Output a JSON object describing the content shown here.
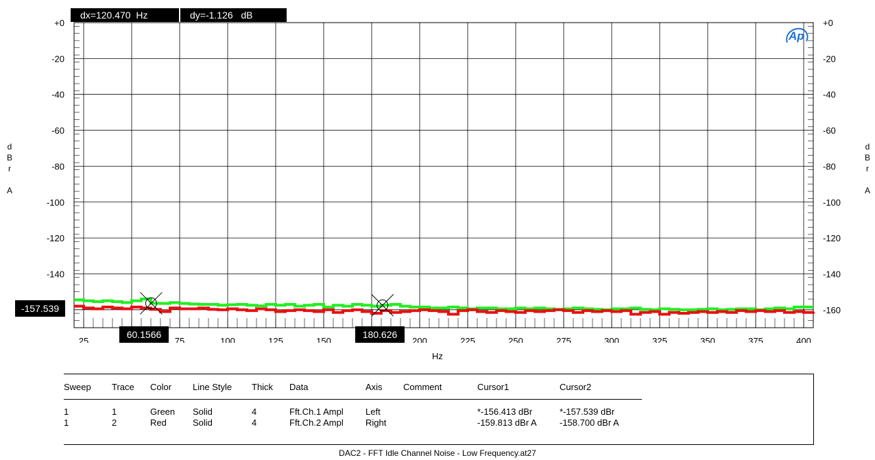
{
  "cursor_readout": {
    "dx": "dx=120.470  Hz",
    "dy": "dy=-1.126   dB"
  },
  "logo_text": "Ap",
  "ylabel_left": [
    "d",
    "B",
    "r",
    "",
    "A"
  ],
  "ylabel_right": [
    "d",
    "B",
    "r",
    "",
    "A"
  ],
  "xlabel": "Hz",
  "markers": {
    "x_cursor1": "60.1566",
    "x_cursor2": "180.626",
    "y_cursor": "-157.539"
  },
  "legend": {
    "headers": [
      "Sweep",
      "Trace",
      "Color",
      "Line Style",
      "Thick",
      "Data",
      "Axis",
      "Comment",
      "Cursor1",
      "Cursor2"
    ],
    "rows": [
      [
        "1",
        "1",
        "Green",
        "Solid",
        "4",
        "Fft.Ch.1 Ampl",
        "Left",
        "",
        "*-156.413 dBr",
        "*-157.539 dBr"
      ],
      [
        "1",
        "2",
        "Red",
        "Solid",
        "4",
        "Fft.Ch.2 Ampl",
        "Right",
        "",
        "-159.813 dBr A",
        "-158.700 dBr A"
      ]
    ]
  },
  "footer": "DAC2 - FFT Idle Channel Noise - Low Frequency.at27",
  "colors": {
    "trace1": "#22ee22",
    "trace2": "#e81010",
    "grid": "#000000"
  },
  "chart_data": {
    "type": "line",
    "xlabel": "Hz",
    "ylabel": "dBr A",
    "xlim": [
      20,
      405
    ],
    "ylim": [
      -170,
      0
    ],
    "x_ticks": [
      "25",
      "50",
      "75",
      "100",
      "125",
      "150",
      "175",
      "200",
      "225",
      "250",
      "275",
      "300",
      "325",
      "350",
      "375",
      "400"
    ],
    "y_ticks_left": [
      "+0",
      "-20",
      "-40",
      "-60",
      "-80",
      "-100",
      "-120",
      "-140",
      "-160"
    ],
    "y_ticks_right": [
      "+0",
      "-20",
      "-40",
      "-60",
      "-80",
      "-100",
      "-120",
      "-140",
      "-160"
    ],
    "grid": true,
    "cursors": {
      "x1": 60.1566,
      "x2": 180.626,
      "y1_trace1": -156.413,
      "y2_trace1": -157.539
    },
    "series": [
      {
        "x": [
          20,
          25,
          30,
          35,
          40,
          45,
          50,
          55,
          60,
          65,
          70,
          75,
          80,
          85,
          90,
          95,
          100,
          105,
          110,
          115,
          120,
          125,
          130,
          135,
          140,
          145,
          150,
          155,
          160,
          165,
          170,
          175,
          180,
          185,
          190,
          195,
          200,
          205,
          210,
          215,
          220,
          225,
          230,
          235,
          240,
          245,
          250,
          255,
          260,
          265,
          270,
          275,
          280,
          285,
          290,
          295,
          300,
          305,
          310,
          315,
          320,
          325,
          330,
          335,
          340,
          345,
          350,
          355,
          360,
          365,
          370,
          375,
          380,
          385,
          390,
          395,
          400,
          405
        ],
        "values": [
          -154.5,
          -155.0,
          -155.5,
          -155.0,
          -155.5,
          -156.0,
          -155.0,
          -154.0,
          -156.4,
          -156.5,
          -156.0,
          -156.5,
          -156.8,
          -157.0,
          -157.0,
          -157.5,
          -157.2,
          -157.0,
          -157.5,
          -157.8,
          -157.0,
          -157.5,
          -157.0,
          -158.0,
          -157.5,
          -157.0,
          -158.5,
          -157.5,
          -158.0,
          -157.0,
          -157.5,
          -158.0,
          -157.5,
          -157.0,
          -158.0,
          -158.5,
          -158.5,
          -159.0,
          -159.0,
          -158.5,
          -159.0,
          -159.5,
          -159.0,
          -159.0,
          -159.5,
          -159.5,
          -159.0,
          -159.5,
          -159.0,
          -159.5,
          -159.8,
          -159.5,
          -159.0,
          -159.5,
          -159.8,
          -160.0,
          -159.5,
          -159.5,
          -159.0,
          -159.8,
          -160.0,
          -159.5,
          -159.8,
          -160.0,
          -160.0,
          -159.8,
          -159.5,
          -160.0,
          -159.8,
          -159.5,
          -159.5,
          -160.0,
          -159.5,
          -159.0,
          -159.5,
          -158.5,
          -158.5,
          -158.5
        ]
      },
      {
        "x": [
          20,
          25,
          30,
          35,
          40,
          45,
          50,
          55,
          60,
          65,
          70,
          75,
          80,
          85,
          90,
          95,
          100,
          105,
          110,
          115,
          120,
          125,
          130,
          135,
          140,
          145,
          150,
          155,
          160,
          165,
          170,
          175,
          180,
          185,
          190,
          195,
          200,
          205,
          210,
          215,
          220,
          225,
          230,
          235,
          240,
          245,
          250,
          255,
          260,
          265,
          270,
          275,
          280,
          285,
          290,
          295,
          300,
          305,
          310,
          315,
          320,
          325,
          330,
          335,
          340,
          345,
          350,
          355,
          360,
          365,
          370,
          375,
          380,
          385,
          390,
          395,
          400,
          405
        ],
        "values": [
          -158.0,
          -159.0,
          -159.5,
          -158.5,
          -159.0,
          -159.5,
          -158.5,
          -159.0,
          -159.8,
          -161.0,
          -159.0,
          -159.5,
          -159.5,
          -159.0,
          -159.8,
          -160.0,
          -159.5,
          -160.0,
          -160.5,
          -159.5,
          -160.0,
          -161.0,
          -160.5,
          -160.0,
          -160.5,
          -161.0,
          -160.0,
          -161.5,
          -160.5,
          -160.0,
          -161.0,
          -162.0,
          -160.5,
          -161.5,
          -161.0,
          -160.5,
          -160.0,
          -160.5,
          -161.0,
          -162.5,
          -160.5,
          -160.0,
          -161.0,
          -161.5,
          -160.5,
          -161.0,
          -161.5,
          -160.5,
          -161.0,
          -160.5,
          -160.0,
          -160.5,
          -161.5,
          -160.5,
          -161.0,
          -160.5,
          -161.0,
          -160.5,
          -162.5,
          -161.5,
          -161.0,
          -162.5,
          -161.5,
          -162.0,
          -161.5,
          -161.0,
          -161.5,
          -161.0,
          -161.5,
          -160.5,
          -161.0,
          -160.5,
          -161.0,
          -160.5,
          -161.5,
          -161.0,
          -161.5,
          -161.0
        ]
      }
    ]
  }
}
